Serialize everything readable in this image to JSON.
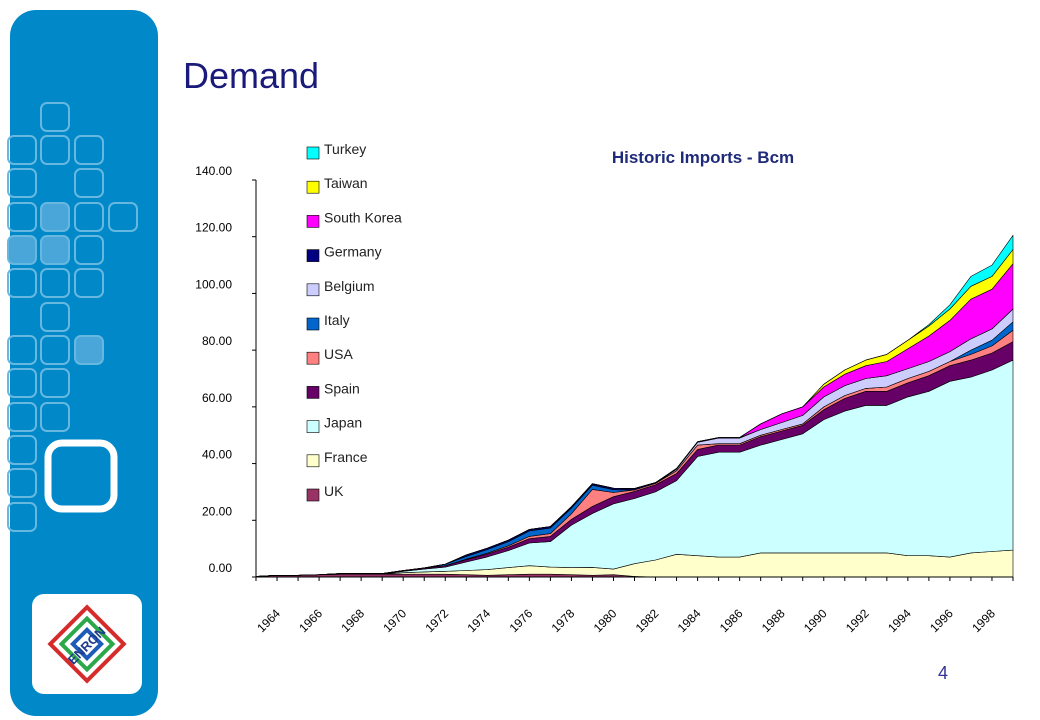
{
  "page": {
    "title": "Demand",
    "page_number": "4"
  },
  "logo": {
    "text": "ENRON"
  },
  "chart_data": {
    "type": "area",
    "stacked": true,
    "title": "Historic Imports - Bcm",
    "xlabel": "",
    "ylabel": "",
    "x": [
      1964,
      1965,
      1966,
      1967,
      1968,
      1969,
      1970,
      1971,
      1972,
      1973,
      1974,
      1975,
      1976,
      1977,
      1978,
      1979,
      1980,
      1981,
      1982,
      1983,
      1984,
      1985,
      1986,
      1987,
      1988,
      1989,
      1990,
      1991,
      1992,
      1993,
      1994,
      1995,
      1996,
      1997,
      1998,
      1999,
      2000
    ],
    "x_tick_labels": [
      "1964",
      "1966",
      "1968",
      "1970",
      "1972",
      "1974",
      "1976",
      "1978",
      "1980",
      "1982",
      "1984",
      "1986",
      "1988",
      "1990",
      "1992",
      "1994",
      "1996",
      "1998"
    ],
    "ylim": [
      0,
      140
    ],
    "y_tick_labels": [
      "0.00",
      "20.00",
      "40.00",
      "60.00",
      "80.00",
      "100.00",
      "120.00",
      "140.00"
    ],
    "legend_position": "left",
    "series": [
      {
        "name": "UK",
        "color": "#993366",
        "values": [
          0.2,
          0.6,
          0.6,
          0.8,
          1,
          1,
          1,
          1,
          1,
          1,
          0.8,
          0.6,
          0.8,
          1,
          1,
          0.8,
          0.6,
          0.8,
          0.2,
          0,
          0,
          0,
          0,
          0,
          0,
          0,
          0,
          0,
          0,
          0,
          0,
          0,
          0,
          0,
          0,
          0,
          0
        ]
      },
      {
        "name": "France",
        "color": "#ffffcc",
        "values": [
          0,
          0,
          0,
          0,
          0,
          0,
          0,
          0.5,
          0.8,
          1,
          1.5,
          2,
          2.5,
          3,
          2.5,
          2.5,
          2.8,
          2,
          4.5,
          6,
          8,
          7.5,
          7,
          7,
          8.5,
          8.5,
          8.5,
          8.5,
          8.5,
          8.5,
          8.5,
          7.5,
          7.5,
          7,
          8.5,
          9,
          9.5
        ]
      },
      {
        "name": "Japan",
        "color": "#ccffff",
        "values": [
          0,
          0,
          0,
          0,
          0,
          0,
          0,
          0.5,
          1,
          1.5,
          3,
          4.5,
          6,
          8,
          9,
          15,
          19,
          23,
          23,
          24,
          26,
          35,
          37,
          37,
          38,
          40,
          42,
          47,
          50,
          52,
          52,
          56,
          58,
          62,
          62,
          64,
          67
        ]
      },
      {
        "name": "Spain",
        "color": "#660066",
        "values": [
          0,
          0,
          0,
          0,
          0.2,
          0.2,
          0.2,
          0.3,
          0.4,
          0.5,
          0.8,
          1,
          1.2,
          1.5,
          1.8,
          2,
          2.5,
          2.5,
          2.5,
          2.5,
          2.5,
          2.5,
          2.5,
          2.5,
          3,
          3,
          3,
          3.5,
          4.5,
          5,
          5,
          5,
          5.5,
          5.5,
          6,
          6,
          6.5
        ]
      },
      {
        "name": "USA",
        "color": "#ff8080",
        "values": [
          0,
          0,
          0,
          0,
          0,
          0,
          0,
          0,
          0,
          0,
          0.2,
          0.3,
          0.5,
          0.8,
          1,
          2,
          6,
          1.5,
          0.5,
          0.5,
          1,
          1.5,
          0.5,
          0.5,
          0.5,
          0.5,
          0.5,
          1,
          1,
          1,
          1.5,
          1.5,
          1.5,
          1.5,
          2,
          2.5,
          4
        ]
      },
      {
        "name": "Italy",
        "color": "#0066cc",
        "values": [
          0,
          0,
          0,
          0,
          0,
          0,
          0,
          0,
          0,
          0.5,
          1,
          1.3,
          1.5,
          2,
          2,
          2,
          1.5,
          1,
          0,
          0,
          0,
          0,
          0,
          0,
          0,
          0,
          0,
          0,
          0,
          0,
          0,
          0,
          0,
          0,
          1.5,
          2,
          3
        ]
      },
      {
        "name": "Belgium",
        "color": "#ccccff",
        "values": [
          0,
          0,
          0,
          0,
          0,
          0,
          0,
          0,
          0,
          0,
          0,
          0,
          0,
          0,
          0,
          0,
          0,
          0,
          0,
          0,
          0.5,
          1,
          2,
          2,
          2,
          2.5,
          3,
          3.5,
          3.5,
          3.5,
          4,
          3.5,
          3.5,
          3.5,
          4,
          4,
          4.5
        ]
      },
      {
        "name": "Germany",
        "color": "#000080",
        "values": [
          0,
          0,
          0,
          0,
          0,
          0,
          0,
          0,
          0,
          0,
          0.5,
          0.5,
          0.5,
          0.5,
          0.5,
          0.5,
          0.5,
          0.5,
          0.5,
          0.3,
          0.3,
          0.2,
          0.2,
          0.2,
          0,
          0,
          0,
          0,
          0,
          0,
          0,
          0,
          0,
          0,
          0,
          0,
          0
        ]
      },
      {
        "name": "South Korea",
        "color": "#ff00ff",
        "values": [
          0,
          0,
          0,
          0,
          0,
          0,
          0,
          0,
          0,
          0,
          0,
          0,
          0,
          0,
          0,
          0,
          0,
          0,
          0,
          0,
          0,
          0,
          0,
          0,
          2,
          3,
          3,
          3.5,
          4,
          4.5,
          5,
          7,
          9,
          11,
          14,
          14,
          16
        ]
      },
      {
        "name": "Taiwan",
        "color": "#ffff00",
        "values": [
          0,
          0,
          0,
          0,
          0,
          0,
          0,
          0,
          0,
          0,
          0,
          0,
          0,
          0,
          0,
          0,
          0,
          0,
          0,
          0,
          0,
          0,
          0,
          0,
          0,
          0,
          0,
          1,
          1.5,
          2,
          2.5,
          3,
          3.5,
          4,
          4.5,
          4.5,
          5
        ]
      },
      {
        "name": "Turkey",
        "color": "#00ffff",
        "values": [
          0,
          0,
          0,
          0,
          0,
          0,
          0,
          0,
          0,
          0,
          0,
          0,
          0,
          0,
          0,
          0,
          0,
          0,
          0,
          0,
          0,
          0,
          0,
          0,
          0,
          0,
          0,
          0,
          0,
          0,
          0,
          0,
          0.5,
          1.5,
          3.5,
          4,
          5
        ]
      }
    ]
  }
}
